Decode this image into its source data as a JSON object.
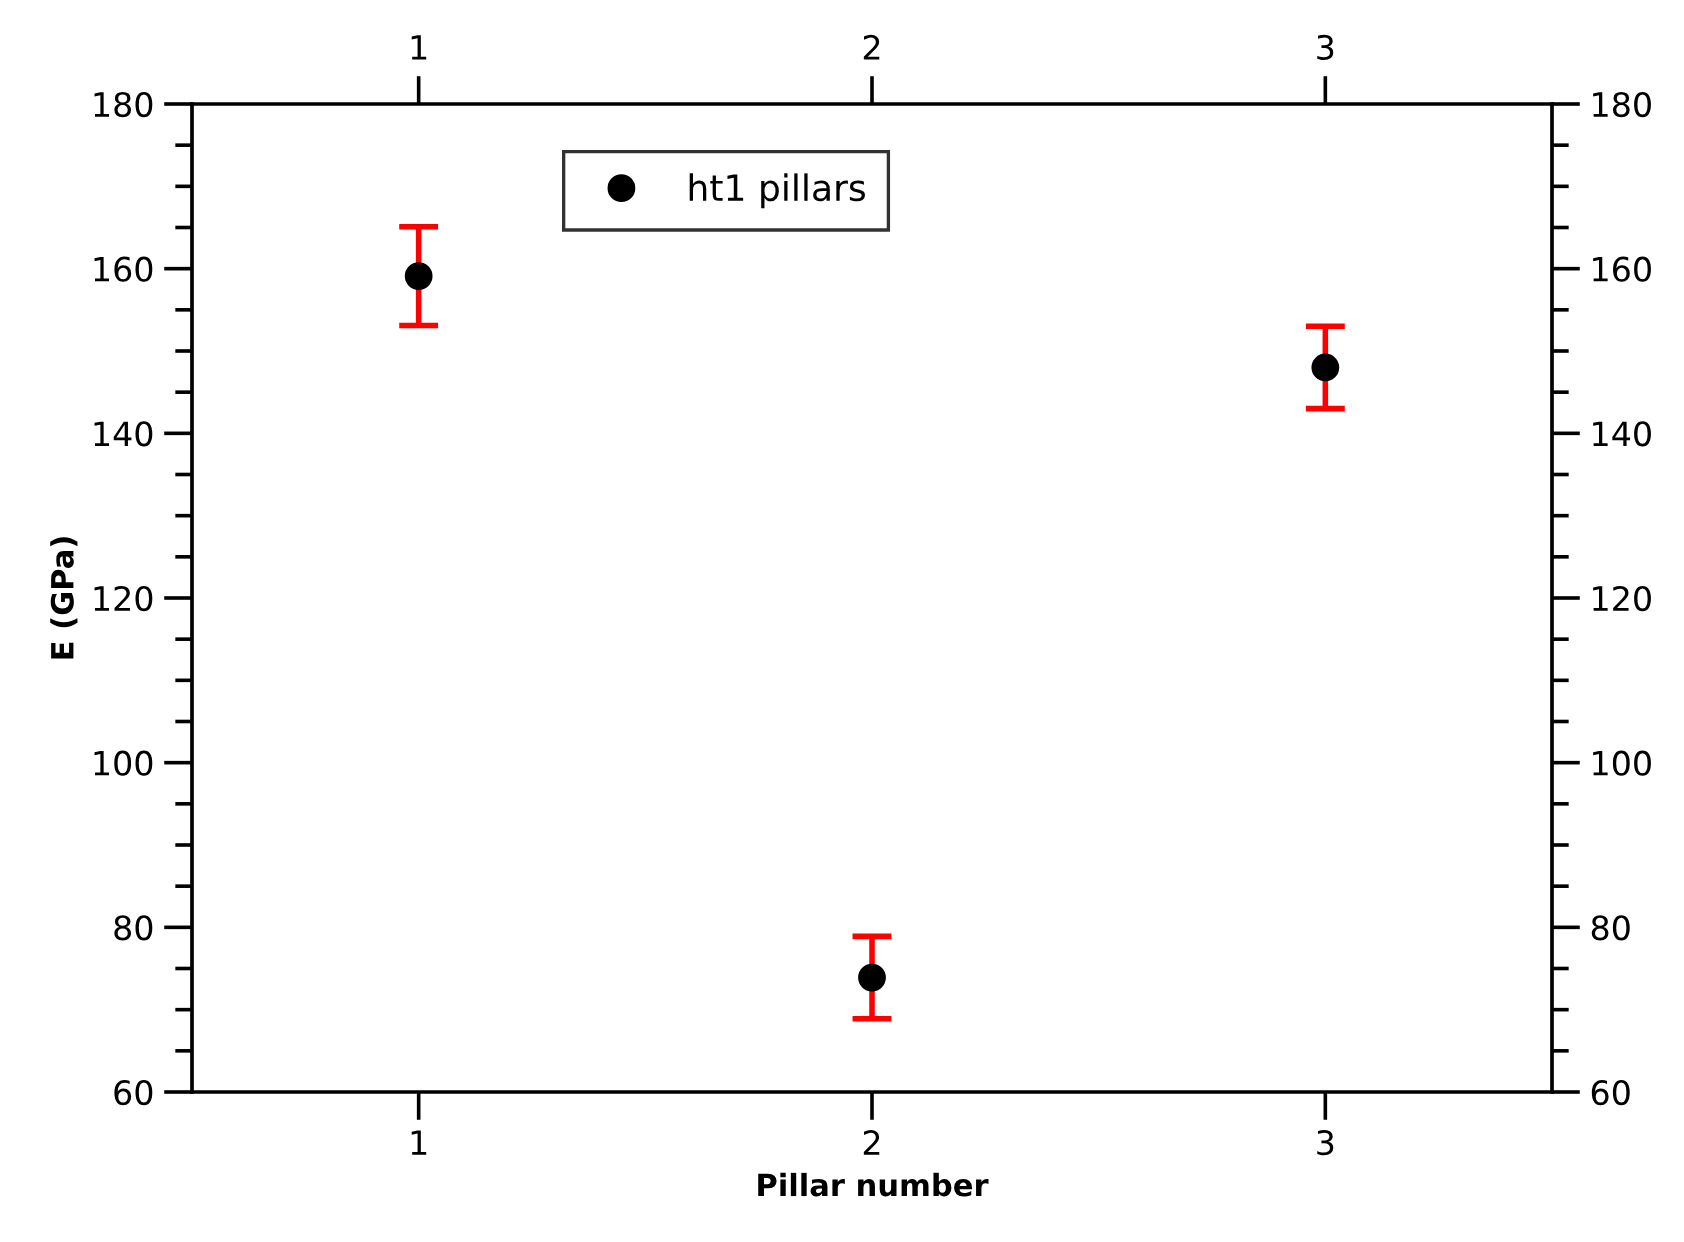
{
  "chart_data": {
    "type": "scatter",
    "xlabel": "Pillar number",
    "ylabel": "E (GPa)",
    "x": [
      1,
      2,
      3
    ],
    "series": [
      {
        "name": "ht1 pillars",
        "color": "#000000",
        "values": [
          159.1,
          73.9,
          148.0
        ],
        "errors": [
          6,
          5,
          5
        ]
      }
    ],
    "xlim": [
      0.5,
      3.5
    ],
    "xticks": [
      1,
      2,
      3
    ],
    "x2lim": [
      0.5,
      3.5
    ],
    "x2ticks": [
      1,
      2,
      3
    ],
    "ylim": [
      60,
      180
    ],
    "yticks": [
      60,
      80,
      100,
      120,
      140,
      160,
      180
    ],
    "y2lim": [
      60,
      180
    ],
    "y2ticks": [
      60,
      80,
      100,
      120,
      140,
      160,
      180
    ],
    "marker": "circle",
    "grid": false,
    "legend": "top left"
  }
}
